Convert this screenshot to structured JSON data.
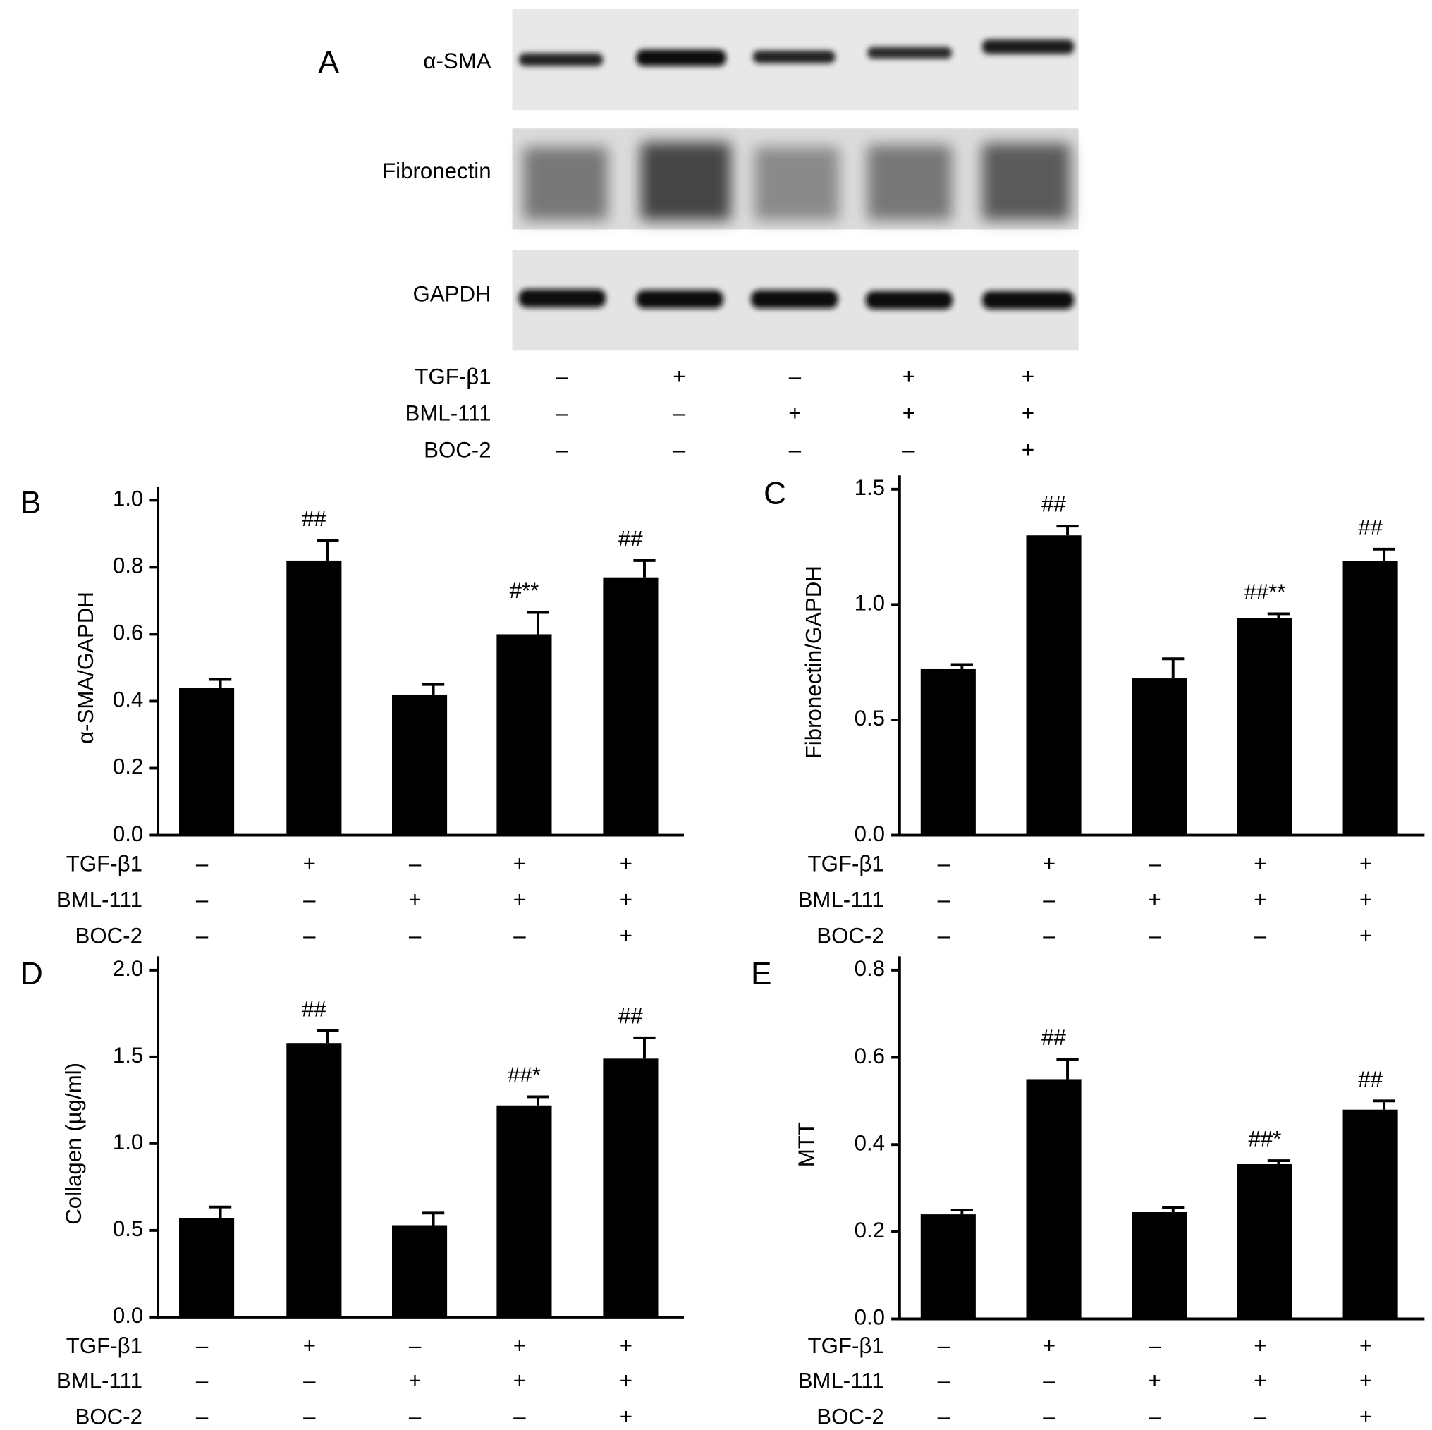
{
  "blot": {
    "label": "A",
    "proteins": [
      "α-SMA",
      "Fibronectin",
      "GAPDH"
    ],
    "treatments": [
      {
        "name": "TGF-β1",
        "signs": [
          "–",
          "+",
          "–",
          "+",
          "+"
        ]
      },
      {
        "name": "BML-111",
        "signs": [
          "–",
          "–",
          "+",
          "+",
          "+"
        ]
      },
      {
        "name": "BOC-2",
        "signs": [
          "–",
          "–",
          "–",
          "–",
          "+"
        ]
      }
    ]
  },
  "chart_data": [
    {
      "type": "bar",
      "panel": "B",
      "ylabel": "α-SMA/GAPDH",
      "color": "#000000",
      "values": [
        0.44,
        0.82,
        0.42,
        0.6,
        0.77
      ],
      "errors": [
        0.025,
        0.06,
        0.03,
        0.065,
        0.05
      ],
      "annotations": [
        null,
        "##",
        null,
        "#**",
        "##"
      ],
      "ylim": [
        0,
        1
      ],
      "yticks": [
        {
          "value": 0,
          "label": "0.0"
        },
        0.2,
        0.4,
        0.6,
        0.8,
        {
          "value": 1,
          "label": "1.0"
        }
      ],
      "treatments": [
        {
          "name": "TGF-β1",
          "signs": [
            "–",
            "+",
            "–",
            "+",
            "+"
          ]
        },
        {
          "name": "BML-111",
          "signs": [
            "–",
            "–",
            "+",
            "+",
            "+"
          ]
        },
        {
          "name": "BOC-2",
          "signs": [
            "–",
            "–",
            "–",
            "–",
            "+"
          ]
        }
      ]
    },
    {
      "type": "bar",
      "panel": "C",
      "ylabel": "Fibronectin/GAPDH",
      "color": "#000000",
      "values": [
        0.72,
        1.3,
        0.68,
        0.94,
        1.19
      ],
      "errors": [
        0.02,
        0.04,
        0.085,
        0.02,
        0.05
      ],
      "annotations": [
        null,
        "##",
        null,
        "##**",
        "##"
      ],
      "ylim": [
        0,
        1.5
      ],
      "yticks": [
        {
          "value": 0,
          "label": "0.0"
        },
        0.5,
        {
          "value": 1,
          "label": "1.0"
        },
        1.5
      ],
      "treatments": [
        {
          "name": "TGF-β1",
          "signs": [
            "–",
            "+",
            "–",
            "+",
            "+"
          ]
        },
        {
          "name": "BML-111",
          "signs": [
            "–",
            "–",
            "+",
            "+",
            "+"
          ]
        },
        {
          "name": "BOC-2",
          "signs": [
            "–",
            "–",
            "–",
            "–",
            "+"
          ]
        }
      ]
    },
    {
      "type": "bar",
      "panel": "D",
      "ylabel": "Collagen (µg/ml)",
      "color": "#000000",
      "values": [
        0.57,
        1.58,
        0.53,
        1.22,
        1.49
      ],
      "errors": [
        0.065,
        0.07,
        0.07,
        0.05,
        0.12
      ],
      "annotations": [
        null,
        "##",
        null,
        "##*",
        "##"
      ],
      "ylim": [
        0,
        2
      ],
      "yticks": [
        {
          "value": 0,
          "label": "0.0"
        },
        0.5,
        {
          "value": 1,
          "label": "1.0"
        },
        1.5,
        {
          "value": 2,
          "label": "2.0"
        }
      ],
      "treatments": [
        {
          "name": "TGF-β1",
          "signs": [
            "–",
            "+",
            "–",
            "+",
            "+"
          ]
        },
        {
          "name": "BML-111",
          "signs": [
            "–",
            "–",
            "+",
            "+",
            "+"
          ]
        },
        {
          "name": "BOC-2",
          "signs": [
            "–",
            "–",
            "–",
            "–",
            "+"
          ]
        }
      ]
    },
    {
      "type": "bar",
      "panel": "E",
      "ylabel": "MTT",
      "color": "#000000",
      "values": [
        0.24,
        0.55,
        0.245,
        0.355,
        0.48
      ],
      "errors": [
        0.01,
        0.045,
        0.01,
        0.008,
        0.02
      ],
      "annotations": [
        null,
        "##",
        null,
        "##*",
        "##"
      ],
      "ylim": [
        0,
        0.8
      ],
      "yticks": [
        {
          "value": 0,
          "label": "0.0"
        },
        0.2,
        0.4,
        0.6,
        0.8
      ],
      "treatments": [
        {
          "name": "TGF-β1",
          "signs": [
            "–",
            "+",
            "–",
            "+",
            "+"
          ]
        },
        {
          "name": "BML-111",
          "signs": [
            "–",
            "–",
            "+",
            "+",
            "+"
          ]
        },
        {
          "name": "BOC-2",
          "signs": [
            "–",
            "–",
            "–",
            "–",
            "+"
          ]
        }
      ]
    }
  ]
}
